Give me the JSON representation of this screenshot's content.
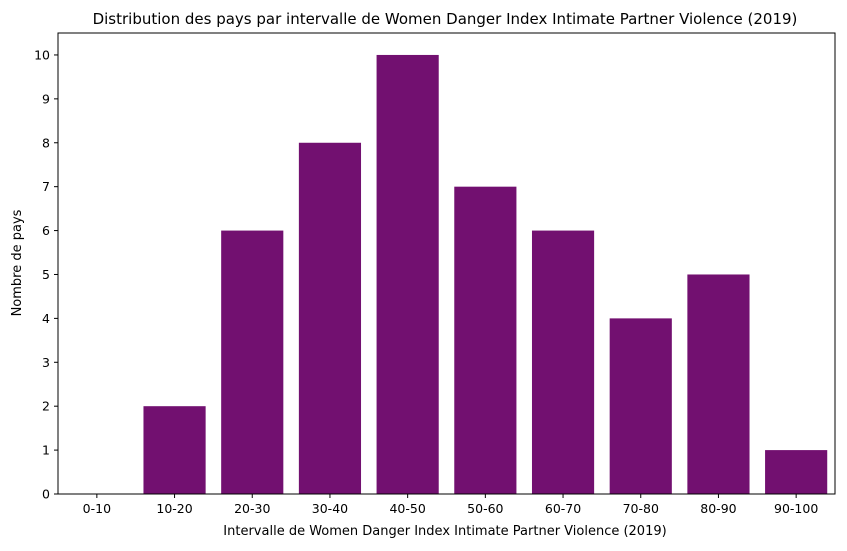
{
  "chart_data": {
    "type": "bar",
    "title": "Distribution des pays par intervalle de Women Danger Index Intimate Partner Violence  (2019)",
    "xlabel": "Intervalle de Women Danger Index Intimate Partner Violence (2019)",
    "ylabel": "Nombre de pays",
    "categories": [
      "0-10",
      "10-20",
      "20-30",
      "30-40",
      "40-50",
      "50-60",
      "60-70",
      "70-80",
      "80-90",
      "90-100"
    ],
    "values": [
      0,
      2,
      6,
      8,
      10,
      7,
      6,
      4,
      5,
      1
    ],
    "ylim": [
      0,
      10.5
    ],
    "yticks": [
      0,
      1,
      2,
      3,
      4,
      5,
      6,
      7,
      8,
      9,
      10
    ],
    "bar_color": "#721070",
    "grid": false,
    "legend": false
  }
}
